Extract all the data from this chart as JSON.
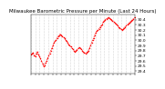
{
  "title": "Milwaukee Barometric Pressure per Minute (Last 24 Hours)",
  "ylim": [
    29.35,
    30.5
  ],
  "yticks": [
    29.4,
    29.5,
    29.6,
    29.7,
    29.8,
    29.9,
    30.0,
    30.1,
    30.2,
    30.3,
    30.4
  ],
  "ytick_labels": [
    "29.4",
    "29.5",
    "29.6",
    "29.7",
    "29.8",
    "29.9",
    "30.0",
    "30.1",
    "30.2",
    "30.3",
    "30.4"
  ],
  "bg_color": "#ffffff",
  "line_color": "#ff0000",
  "grid_color": "#b0b0b0",
  "title_fontsize": 4.0,
  "tick_fontsize": 3.2,
  "y_values": [
    29.72,
    29.74,
    29.76,
    29.71,
    29.68,
    29.75,
    29.78,
    29.73,
    29.69,
    29.65,
    29.6,
    29.55,
    29.5,
    29.52,
    29.56,
    29.6,
    29.65,
    29.7,
    29.75,
    29.8,
    29.85,
    29.9,
    29.95,
    29.98,
    30.0,
    30.05,
    30.08,
    30.1,
    30.12,
    30.1,
    30.08,
    30.06,
    30.04,
    30.0,
    29.98,
    29.96,
    29.92,
    29.9,
    29.88,
    29.85,
    29.83,
    29.8,
    29.78,
    29.8,
    29.82,
    29.84,
    29.86,
    29.85,
    29.83,
    29.8,
    29.78,
    29.76,
    29.75,
    29.76,
    29.78,
    29.8,
    29.85,
    29.9,
    29.95,
    30.0,
    30.05,
    30.1,
    30.15,
    30.18,
    30.2,
    30.22,
    30.25,
    30.28,
    30.3,
    30.35,
    30.38,
    30.4,
    30.42,
    30.43,
    30.44,
    30.43,
    30.42,
    30.4,
    30.38,
    30.36,
    30.34,
    30.32,
    30.3,
    30.28,
    30.26,
    30.24,
    30.22,
    30.2,
    30.22,
    30.24,
    30.26,
    30.28,
    30.3,
    30.32,
    30.34,
    30.36,
    30.38,
    30.4,
    30.42,
    30.44
  ],
  "n_xticks": 25
}
